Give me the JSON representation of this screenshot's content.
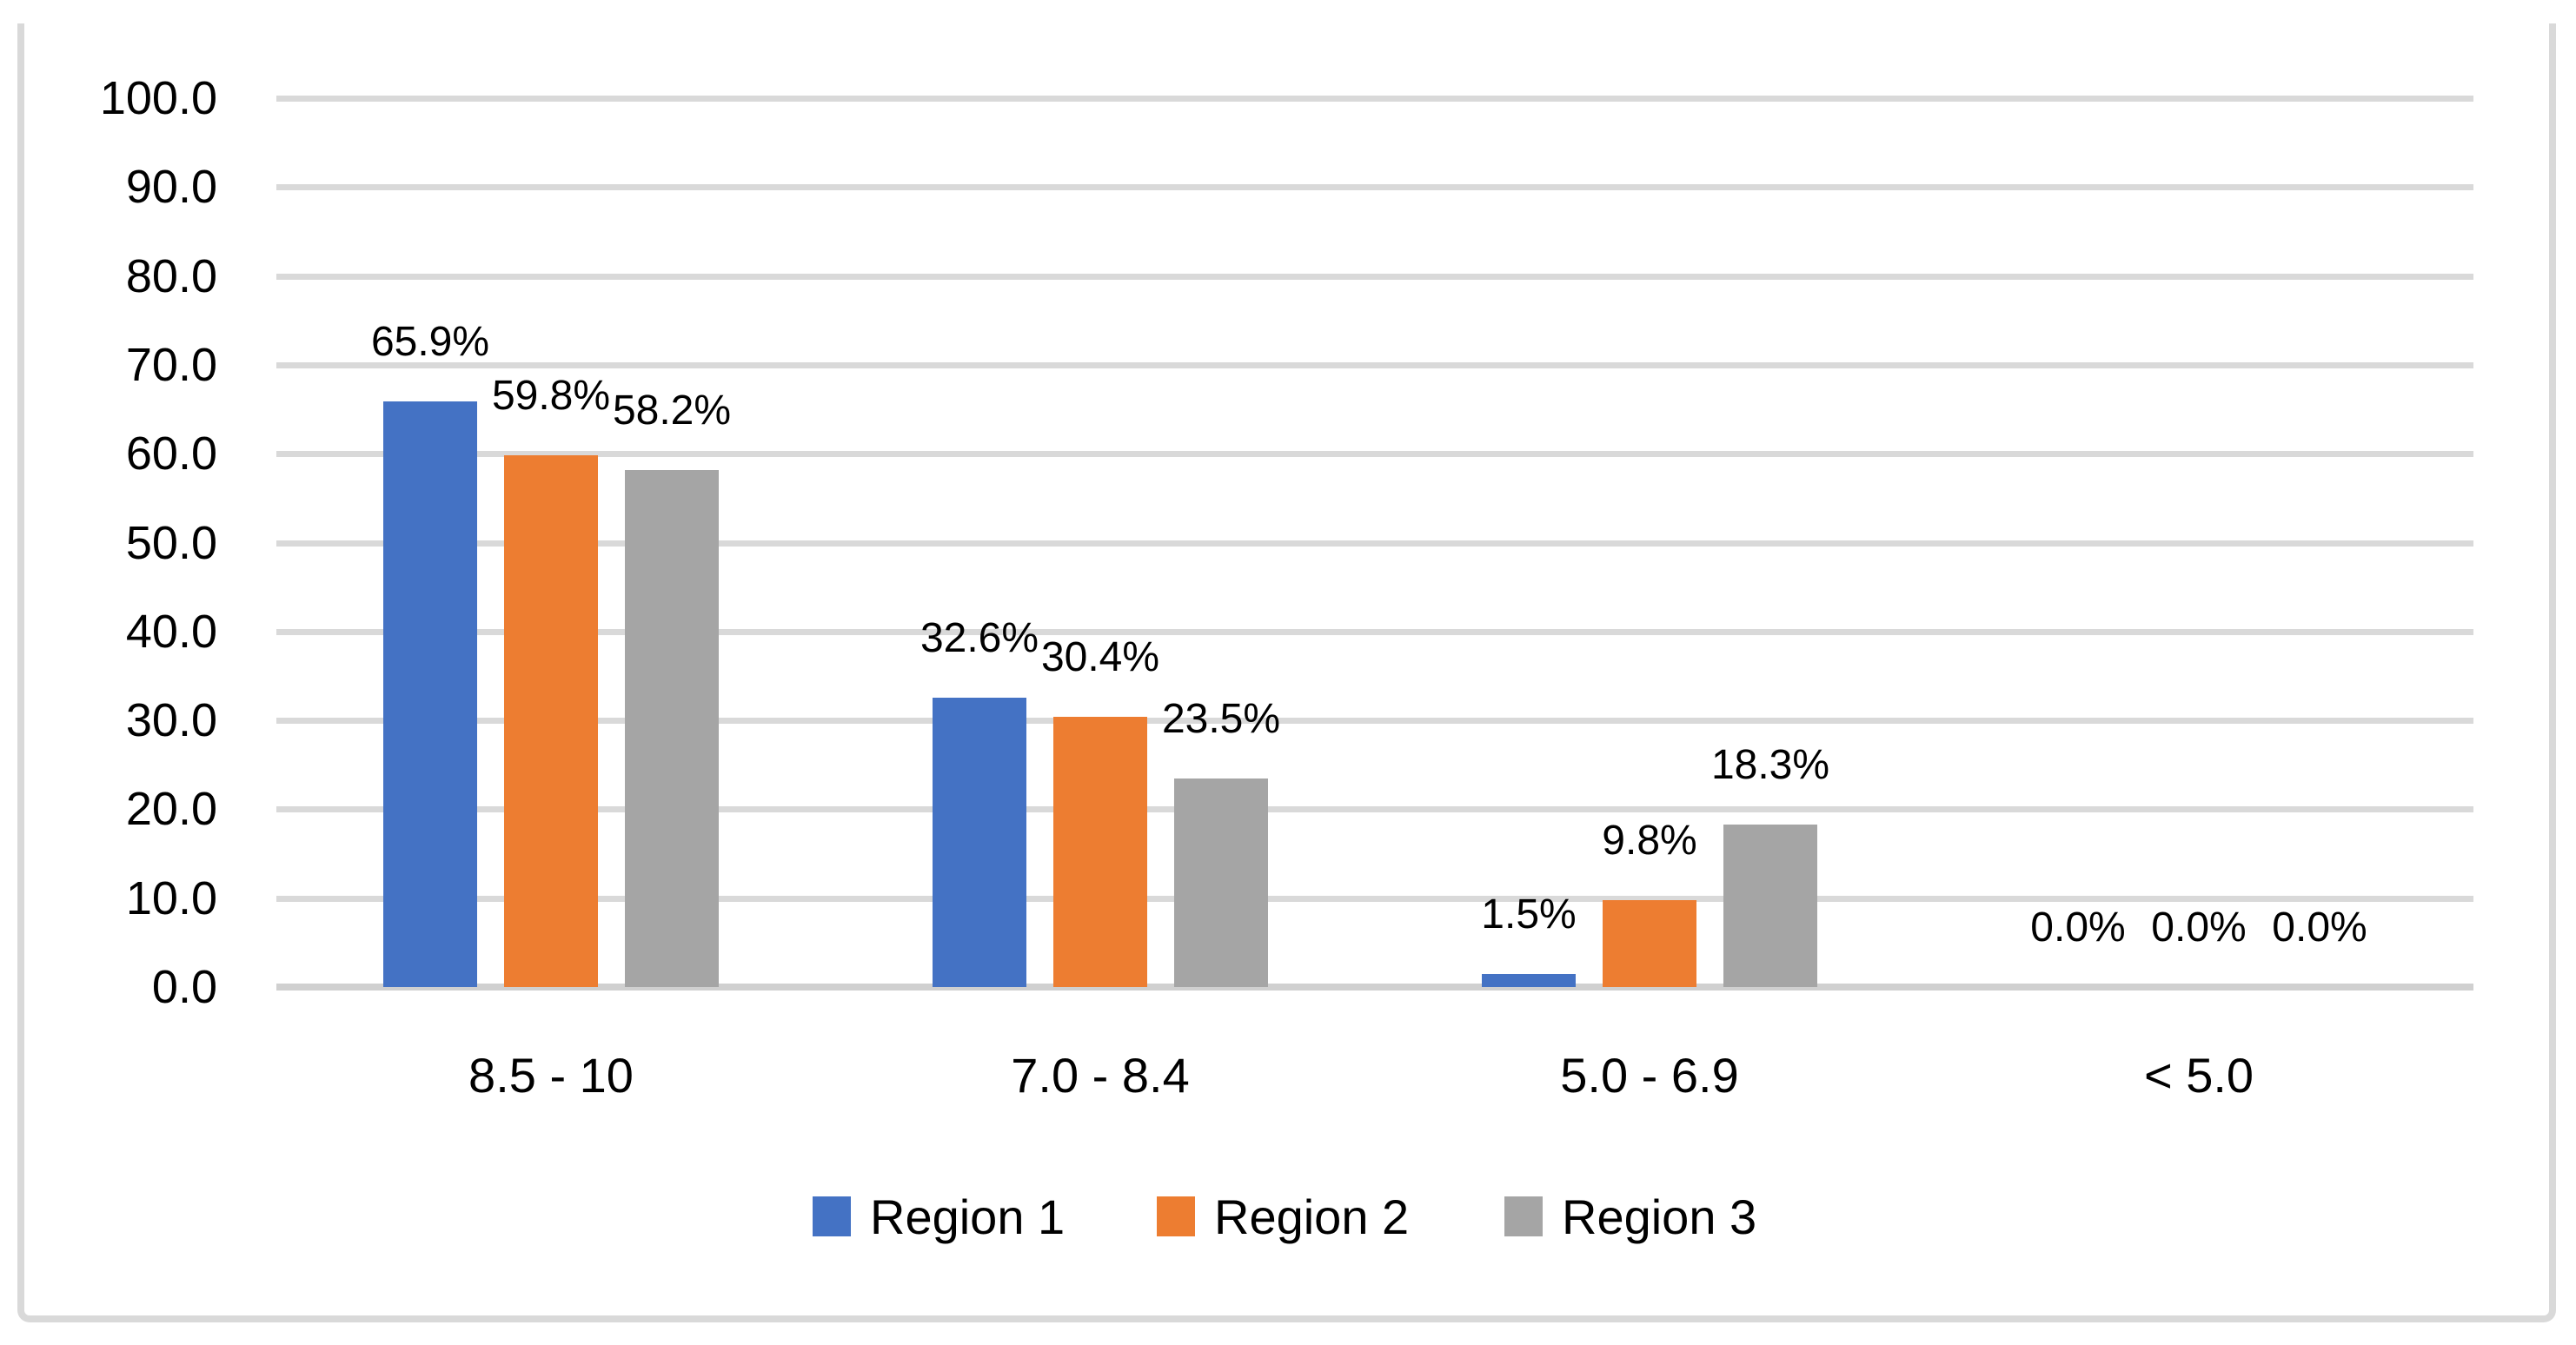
{
  "chart_data": {
    "type": "bar",
    "title": "",
    "xlabel": "",
    "ylabel": "",
    "categories": [
      "8.5 - 10",
      "7.0 - 8.4",
      "5.0 - 6.9",
      "< 5.0"
    ],
    "series": [
      {
        "name": "Region 1",
        "color": "#4472C4",
        "values": [
          65.9,
          32.6,
          1.5,
          0.0
        ],
        "value_labels": [
          "65.9%",
          "32.6%",
          "1.5%",
          "0.0%"
        ]
      },
      {
        "name": "Region 2",
        "color": "#ED7D31",
        "values": [
          59.8,
          30.4,
          9.8,
          0.0
        ],
        "value_labels": [
          "59.8%",
          "30.4%",
          "9.8%",
          "0.0%"
        ]
      },
      {
        "name": "Region 3",
        "color": "#A5A5A5",
        "values": [
          58.2,
          23.5,
          18.3,
          0.0
        ],
        "value_labels": [
          "58.2%",
          "23.5%",
          "18.3%",
          "0.0%"
        ]
      }
    ],
    "y_axis": {
      "min": 0,
      "max": 100,
      "step": 10,
      "tick_labels": [
        "0.0",
        "10.0",
        "20.0",
        "30.0",
        "40.0",
        "50.0",
        "60.0",
        "70.0",
        "80.0",
        "90.0",
        "100.0"
      ]
    },
    "ylim": [
      0,
      100
    ],
    "grid": "horizontal",
    "gridline_color": "#D9D9D9",
    "axis_line_color": "#D0D0D0",
    "frame_color": "#D9D9D9",
    "background_color": "#FFFFFF",
    "text_color": "#000000",
    "legend": {
      "position": "bottom",
      "entries": [
        "Region 1",
        "Region 2",
        "Region 3"
      ]
    }
  }
}
